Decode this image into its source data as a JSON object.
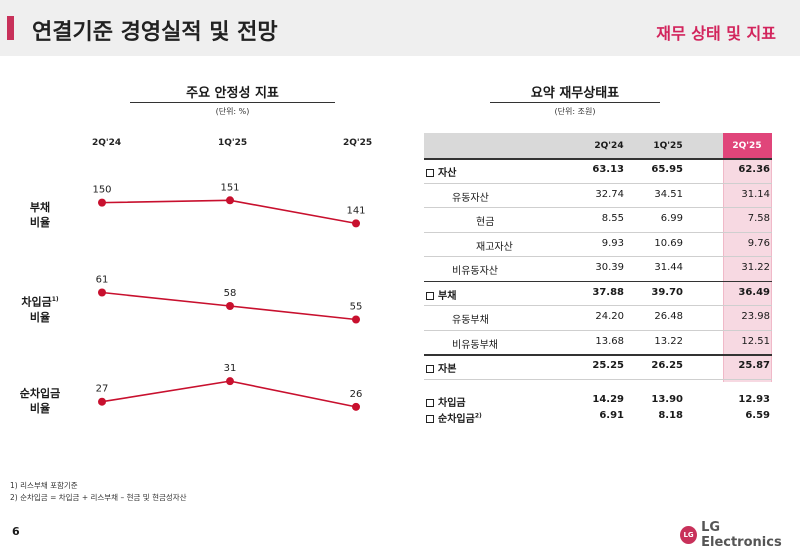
{
  "header": {
    "title": "연결기준 경영실적 및 전망",
    "subtitle": "재무 상태 및 지표"
  },
  "left": {
    "title": "주요 안정성 지표",
    "unit": "(단위: %)",
    "periods": [
      "2Q'24",
      "1Q'25",
      "2Q'25"
    ],
    "rows": [
      {
        "label": "부채",
        "label2": "비율",
        "sup": ""
      },
      {
        "label": "차입금",
        "label2": "비율",
        "sup": "1)"
      },
      {
        "label": "순차입금",
        "label2": "비율",
        "sup": ""
      }
    ]
  },
  "chart_data": {
    "type": "line",
    "title": "주요 안정성 지표",
    "x": [
      "2Q'24",
      "1Q'25",
      "2Q'25"
    ],
    "series": [
      {
        "name": "부채 비율",
        "values": [
          150,
          151,
          141
        ]
      },
      {
        "name": "차입금 비율",
        "values": [
          61,
          58,
          55
        ]
      },
      {
        "name": "순차입금 비율",
        "values": [
          27,
          31,
          26
        ]
      }
    ],
    "color": "#c8102e"
  },
  "right": {
    "title": "요약 재무상태표",
    "unit": "(단위: 조원)",
    "headers": [
      "2Q'24",
      "1Q'25",
      "2Q'25"
    ],
    "rows": [
      {
        "label": "자산",
        "values": [
          "63.13",
          "65.95",
          "62.36"
        ]
      },
      {
        "label": "유동자산",
        "values": [
          "32.74",
          "34.51",
          "31.14"
        ]
      },
      {
        "label": "현금",
        "values": [
          "8.55",
          "6.99",
          "7.58"
        ]
      },
      {
        "label": "재고자산",
        "values": [
          "9.93",
          "10.69",
          "9.76"
        ]
      },
      {
        "label": "비유동자산",
        "values": [
          "30.39",
          "31.44",
          "31.22"
        ]
      },
      {
        "label": "부채",
        "values": [
          "37.88",
          "39.70",
          "36.49"
        ]
      },
      {
        "label": "유동부채",
        "values": [
          "24.20",
          "26.48",
          "23.98"
        ]
      },
      {
        "label": "비유동부채",
        "values": [
          "13.68",
          "13.22",
          "12.51"
        ]
      },
      {
        "label": "자본",
        "values": [
          "25.25",
          "26.25",
          "25.87"
        ]
      }
    ],
    "extra": [
      {
        "label": "차입금",
        "sup": "",
        "values": [
          "14.29",
          "13.90",
          "12.93"
        ]
      },
      {
        "label": "순차입금",
        "sup": "2)",
        "values": [
          "6.91",
          "8.18",
          "6.59"
        ]
      }
    ]
  },
  "notes": [
    "1) 리스부채 포함기준",
    "2) 순차입금 = 차입금 + 리스부채 – 현금 및 현금성자산"
  ],
  "page_number": "6",
  "logo": {
    "mark": "LG",
    "text": "LG Electronics"
  }
}
